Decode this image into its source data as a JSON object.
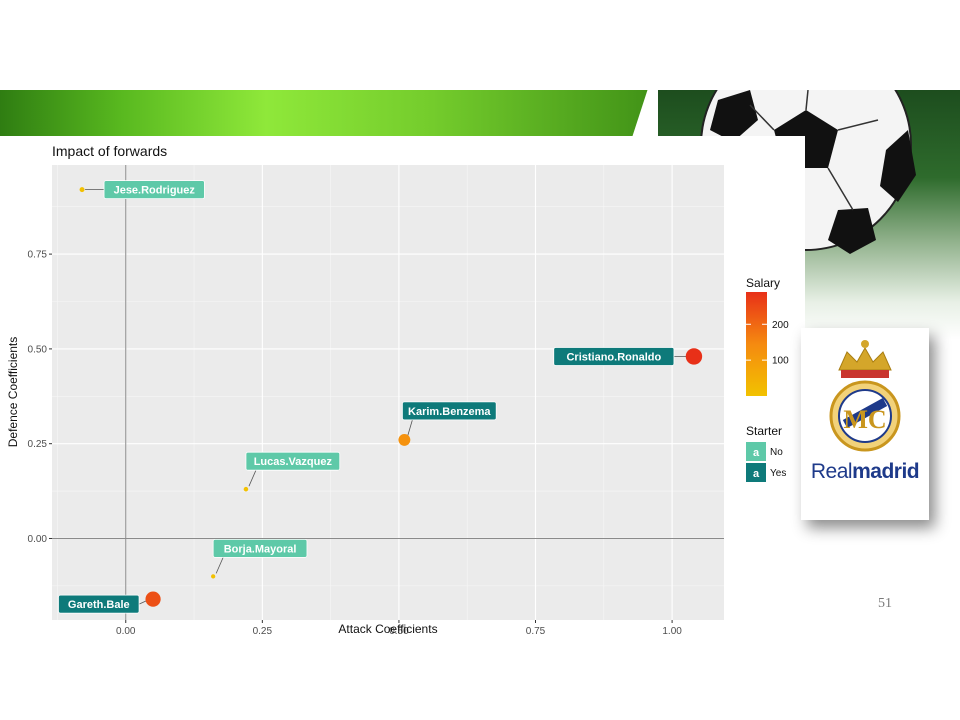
{
  "slide": {
    "page_number": "51"
  },
  "logo": {
    "text_regular": "Real",
    "text_bold": "madrid",
    "fine_print": ""
  },
  "chart_data": {
    "type": "scatter",
    "title": "Impact of forwards",
    "xlabel": "Attack Coefficients",
    "ylabel": "Defence Coefficients",
    "xlim": [
      -0.135,
      1.095
    ],
    "ylim": [
      -0.215,
      0.985
    ],
    "x_ticks": [
      0.0,
      0.25,
      0.5,
      0.75,
      1.0
    ],
    "x_tick_labels": [
      "0.00",
      "0.25",
      "0.50",
      "0.75",
      "1.00"
    ],
    "y_ticks": [
      0.0,
      0.25,
      0.5,
      0.75
    ],
    "y_tick_labels": [
      "0.00",
      "0.25",
      "0.50",
      "0.75"
    ],
    "grid": true,
    "reference_lines": {
      "x": 0,
      "y": 0
    },
    "points": [
      {
        "name": "Jese.Rodriguez",
        "x": -0.08,
        "y": 0.92,
        "salary": 5,
        "starter": "No"
      },
      {
        "name": "Cristiano.Ronaldo",
        "x": 1.04,
        "y": 0.48,
        "salary": 290,
        "starter": "Yes"
      },
      {
        "name": "Karim.Benzema",
        "x": 0.51,
        "y": 0.26,
        "salary": 125,
        "starter": "Yes"
      },
      {
        "name": "Lucas.Vazquez",
        "x": 0.22,
        "y": 0.13,
        "salary": 3,
        "starter": "No"
      },
      {
        "name": "Borja.Mayoral",
        "x": 0.16,
        "y": -0.1,
        "salary": 2,
        "starter": "No"
      },
      {
        "name": "Gareth.Bale",
        "x": 0.05,
        "y": -0.16,
        "salary": 240,
        "starter": "Yes"
      }
    ],
    "legend": {
      "placement": "right",
      "salary": {
        "title": "Salary",
        "breaks": [
          100,
          200
        ],
        "break_labels": [
          "100",
          "200"
        ],
        "range": [
          0,
          290
        ],
        "colors": [
          "#f2c200",
          "#f58a10",
          "#e83018"
        ]
      },
      "starter": {
        "title": "Starter",
        "key_glyph": "a",
        "items": [
          {
            "label": "No",
            "color": "#5ec9a8"
          },
          {
            "label": "Yes",
            "color": "#0e7a7a"
          }
        ]
      }
    },
    "colors": {
      "panel": "#ebebeb",
      "grid": "#ffffff",
      "starter_no": "#5ec9a8",
      "starter_yes": "#0e7a7a"
    }
  }
}
